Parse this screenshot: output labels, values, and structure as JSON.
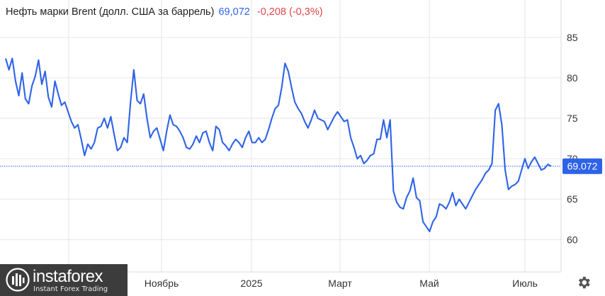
{
  "header": {
    "instrument": "Нефть марки Brent (долл. США за баррель)",
    "last_value": "69,072",
    "change": "-0,208 (-0,3%)"
  },
  "logo": {
    "name": "instaforex",
    "tagline": "Instant Forex Trading"
  },
  "icons": {
    "settings": "gear-icon",
    "logo_mark": "instaforex-logo-icon"
  },
  "colors": {
    "line": "#2e63e7",
    "change_negative": "#e0454a",
    "grid": "#e6e6e6",
    "price_tag_bg": "#2e63e7"
  },
  "chart_data": {
    "type": "line",
    "title": "Нефть марки Brent (долл. США за баррель)",
    "xlabel": "",
    "ylabel": "",
    "x_ticks": [
      "Ноябрь",
      "2025",
      "Март",
      "Май",
      "Июль"
    ],
    "y_ticks": [
      "60",
      "65",
      "70",
      "75",
      "80",
      "85"
    ],
    "ylim": [
      56,
      87
    ],
    "current_value_label": "69.072",
    "current_value": 69.072,
    "grid": true,
    "y_axis_position": "right",
    "series": [
      {
        "values": [
          82.4,
          81.0,
          82.4,
          79.6,
          77.8,
          80.6,
          77.4,
          76.8,
          79.0,
          80.2,
          82.2,
          79.2,
          80.8,
          77.6,
          76.4,
          79.6,
          78.0,
          76.6,
          77.0,
          75.8,
          74.6,
          73.8,
          74.2,
          72.4,
          70.4,
          71.8,
          71.2,
          72.0,
          73.8,
          74.0,
          75.0,
          73.8,
          75.2,
          73.0,
          71.0,
          71.4,
          72.6,
          72.0,
          77.0,
          81.0,
          77.2,
          76.8,
          78.0,
          75.0,
          72.6,
          73.4,
          73.8,
          72.4,
          71.0,
          73.4,
          75.4,
          74.2,
          74.0,
          73.4,
          72.6,
          71.4,
          71.2,
          71.8,
          72.8,
          72.0,
          73.2,
          73.4,
          72.0,
          71.0,
          74.0,
          73.6,
          72.0,
          71.6,
          71.0,
          71.8,
          72.4,
          72.0,
          71.4,
          72.6,
          73.4,
          72.0,
          72.0,
          72.6,
          72.0,
          72.4,
          73.6,
          75.0,
          76.2,
          76.6,
          78.8,
          81.8,
          80.8,
          78.8,
          77.0,
          76.2,
          75.6,
          74.6,
          73.8,
          74.8,
          76.0,
          75.0,
          74.8,
          74.6,
          73.6,
          74.4,
          75.2,
          75.8,
          75.2,
          74.6,
          74.8,
          72.6,
          71.4,
          70.0,
          70.4,
          69.4,
          69.8,
          70.4,
          70.6,
          72.4,
          72.4,
          74.8,
          72.6,
          74.8,
          66.0,
          64.6,
          64.0,
          63.8,
          65.2,
          66.0,
          67.6,
          65.2,
          64.8,
          62.2,
          61.6,
          61.0,
          62.2,
          62.8,
          64.4,
          64.2,
          63.8,
          64.6,
          65.8,
          64.2,
          65.0,
          64.4,
          63.8,
          64.6,
          65.4,
          66.2,
          66.8,
          67.4,
          68.2,
          68.6,
          69.4,
          76.0,
          76.8,
          74.2,
          68.6,
          66.2,
          66.6,
          66.8,
          67.2,
          68.6,
          70.0,
          68.8,
          69.6,
          70.2,
          69.4,
          68.6,
          68.8,
          69.3,
          69.072
        ]
      }
    ]
  }
}
